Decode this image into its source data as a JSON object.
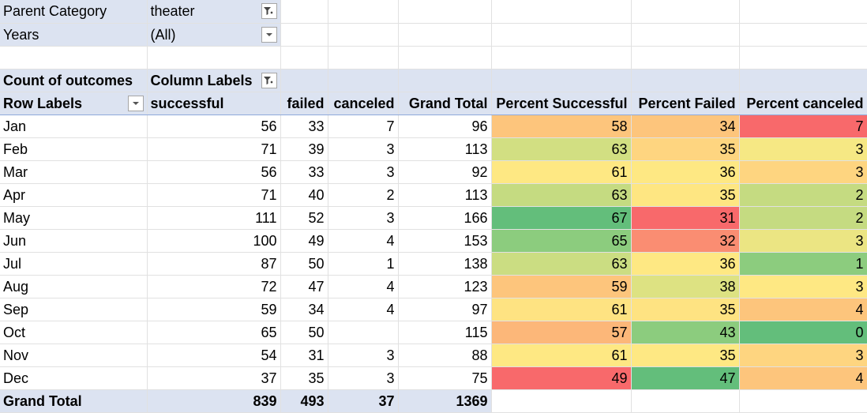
{
  "filters": [
    {
      "label": "Parent Category",
      "value": "theater",
      "icon": "filter-applied-icon"
    },
    {
      "label": "Years",
      "value": "(All)",
      "icon": "dropdown-arrow-icon"
    }
  ],
  "pivot": {
    "value_field": "Count of outcomes",
    "column_labels": "Column Labels",
    "row_labels": "Row Labels",
    "headers": [
      "successful",
      "failed",
      "canceled",
      "Grand Total",
      "Percent Successful",
      "Percent Failed",
      "Percent canceled"
    ],
    "rows": [
      {
        "label": "Jan",
        "successful": "56",
        "failed": "33",
        "canceled": "7",
        "total": "96",
        "pct_s": "58",
        "pct_f": "34",
        "pct_c": "7",
        "color_s": "#fdc57c",
        "color_f": "#fdc57c",
        "color_c": "#f8696b"
      },
      {
        "label": "Feb",
        "successful": "71",
        "failed": "39",
        "canceled": "3",
        "total": "113",
        "pct_s": "63",
        "pct_f": "35",
        "pct_c": "3",
        "color_s": "#d2df82",
        "color_f": "#fed580",
        "color_c": "#f6e884"
      },
      {
        "label": "Mar",
        "successful": "56",
        "failed": "33",
        "canceled": "3",
        "total": "92",
        "pct_s": "61",
        "pct_f": "36",
        "pct_c": "3",
        "color_s": "#fee883",
        "color_f": "#fee883",
        "color_c": "#fed580"
      },
      {
        "label": "Apr",
        "successful": "71",
        "failed": "40",
        "canceled": "2",
        "total": "113",
        "pct_s": "63",
        "pct_f": "35",
        "pct_c": "2",
        "color_s": "#c5db81",
        "color_f": "#fee682",
        "color_c": "#c5db81"
      },
      {
        "label": "May",
        "successful": "111",
        "failed": "52",
        "canceled": "3",
        "total": "166",
        "pct_s": "67",
        "pct_f": "31",
        "pct_c": "2",
        "color_s": "#63be7b",
        "color_f": "#f8696b",
        "color_c": "#c5db81"
      },
      {
        "label": "Jun",
        "successful": "100",
        "failed": "49",
        "canceled": "4",
        "total": "153",
        "pct_s": "65",
        "pct_f": "32",
        "pct_c": "3",
        "color_s": "#8ccc7e",
        "color_f": "#fa8d72",
        "color_c": "#ebe583"
      },
      {
        "label": "Jul",
        "successful": "87",
        "failed": "50",
        "canceled": "1",
        "total": "138",
        "pct_s": "63",
        "pct_f": "36",
        "pct_c": "1",
        "color_s": "#cbdd82",
        "color_f": "#fee883",
        "color_c": "#8ccc7e"
      },
      {
        "label": "Aug",
        "successful": "72",
        "failed": "47",
        "canceled": "4",
        "total": "123",
        "pct_s": "59",
        "pct_f": "38",
        "pct_c": "3",
        "color_s": "#fdc57c",
        "color_f": "#dde282",
        "color_c": "#fee883"
      },
      {
        "label": "Sep",
        "successful": "59",
        "failed": "34",
        "canceled": "4",
        "total": "97",
        "pct_s": "61",
        "pct_f": "35",
        "pct_c": "4",
        "color_s": "#fee382",
        "color_f": "#fee382",
        "color_c": "#fdc57c"
      },
      {
        "label": "Oct",
        "successful": "65",
        "failed": "50",
        "canceled": "",
        "total": "115",
        "pct_s": "57",
        "pct_f": "43",
        "pct_c": "0",
        "color_s": "#fcb779",
        "color_f": "#8ccc7e",
        "color_c": "#63be7b"
      },
      {
        "label": "Nov",
        "successful": "54",
        "failed": "31",
        "canceled": "3",
        "total": "88",
        "pct_s": "61",
        "pct_f": "35",
        "pct_c": "3",
        "color_s": "#fee883",
        "color_f": "#fee883",
        "color_c": "#fed580"
      },
      {
        "label": "Dec",
        "successful": "37",
        "failed": "35",
        "canceled": "3",
        "total": "75",
        "pct_s": "49",
        "pct_f": "47",
        "pct_c": "4",
        "color_s": "#f8696b",
        "color_f": "#63be7b",
        "color_c": "#fdc57c"
      }
    ],
    "grand_total": {
      "label": "Grand Total",
      "successful": "839",
      "failed": "493",
      "canceled": "37",
      "total": "1369"
    }
  }
}
